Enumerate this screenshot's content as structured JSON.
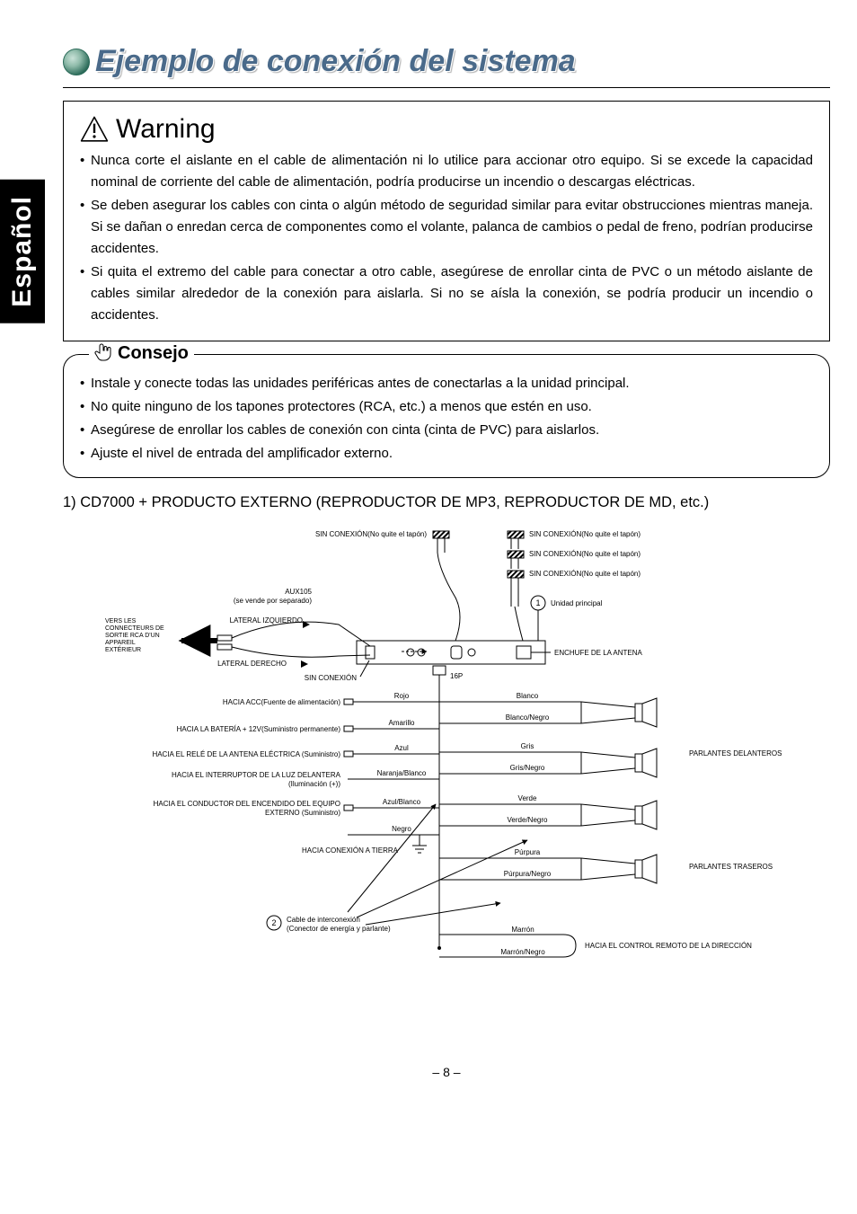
{
  "lang_tab": "Español",
  "title": "Ejemplo de conexión del sistema",
  "warning": {
    "heading": "Warning",
    "items": [
      "Nunca corte el aislante en el cable de alimentación ni lo utilice para accionar otro equipo. Si se excede la capacidad nominal de corriente del cable de alimentación, podría producirse un incendio o descargas eléctricas.",
      "Se deben asegurar los cables con cinta o algún método de seguridad similar para evitar obstrucciones mientras maneja. Si se dañan o enredan cerca de componentes como el volante, palanca de cambios o pedal de freno, podrían producirse accidentes.",
      "Si quita el extremo del cable para conectar a otro cable, asegúrese de enrollar cinta de PVC o un método aislante de cables similar alrededor de la conexión para aislarla. Si no se aísla la conexión, se podría producir un incendio o accidentes."
    ]
  },
  "tip": {
    "heading": "Consejo",
    "items": [
      "Instale y conecte todas las unidades periféricas antes de conectarlas a la unidad principal.",
      "No quite ninguno de los tapones protectores (RCA, etc.) a menos que estén en uso.",
      "Asegúrese de enrollar los cables de conexión con cinta (cinta de PVC) para aislarlos.",
      "Ajuste el nivel de entrada del amplificador externo."
    ]
  },
  "section1": "1) CD7000 + PRODUCTO EXTERNO (REPRODUCTOR DE MP3, REPRODUCTOR DE MD, etc.)",
  "diagram": {
    "font_small": 8,
    "font_tiny": 7,
    "colors": {
      "line": "#000000",
      "bg": "#ffffff",
      "hatch1": "#888",
      "hatch2": "#ccc"
    },
    "top_labels": {
      "no_conn_cap": "SIN CONEXIÓN(No quite el tapón)",
      "aux_line1": "AUX105",
      "aux_line2": "(se vende por separado)",
      "main_unit": "Unidad principal",
      "ext_rca_l1": "VERS LES",
      "ext_rca_l2": "CONNECTEURS DE",
      "ext_rca_l3": "SORTIE RCA D'UN",
      "ext_rca_l4": "APPAREIL",
      "ext_rca_l5": "EXTÉRIEUR",
      "left": "LATERAL IZQUIERDO",
      "right": "LATERAL DERECHO",
      "antenna": "ENCHUFE DE LA ANTENA",
      "sixteen_p": "16P",
      "sin_conexion": "SIN CONEXIÓN"
    },
    "power_rows": [
      {
        "left": "HACIA ACC(Fuente de alimentación)",
        "color": "Rojo",
        "spk_color": "Blanco"
      },
      {
        "left": "HACIA LA BATERÍA + 12V(Suministro permanente)",
        "color": "Amarillo",
        "spk_color": "Blanco/Negro"
      },
      {
        "left": "HACIA EL RELÉ DE LA ANTENA ELÉCTRICA (Suministro)",
        "color": "Azul",
        "spk_color": "Gris"
      },
      {
        "left": "HACIA EL INTERRUPTOR DE LA LUZ DELANTERA",
        "left2": "(Iluminación (+))",
        "color": "Naranja/Blanco",
        "spk_color": "Gris/Negro"
      },
      {
        "left": "HACIA EL CONDUCTOR DEL ENCENDIDO DEL EQUIPO",
        "left2": "EXTERNO (Suministro)",
        "color": "Azul/Blanco",
        "spk_color": "Verde"
      },
      {
        "left": "",
        "color": "Negro",
        "spk_color": "Verde/Negro"
      },
      {
        "left": "HACIA CONEXIÓN A TIERRA",
        "color": "",
        "spk_color": "Púrpura"
      },
      {
        "left": "",
        "color": "",
        "spk_color": "Púrpura/Negro"
      }
    ],
    "front_spk": "PARLANTES DELANTEROS",
    "rear_spk": "PARLANTES TRASEROS",
    "marron": "Marrón",
    "marron_negro": "Marrón/Negro",
    "steering": "HACIA EL CONTROL REMOTO DE LA DIRECCIÓN",
    "callout2_l1": "Cable de interconexión",
    "callout2_l2": "(Conector de energía y parlante)",
    "callout1": "1",
    "callout2": "2"
  },
  "page_number": "– 8 –"
}
